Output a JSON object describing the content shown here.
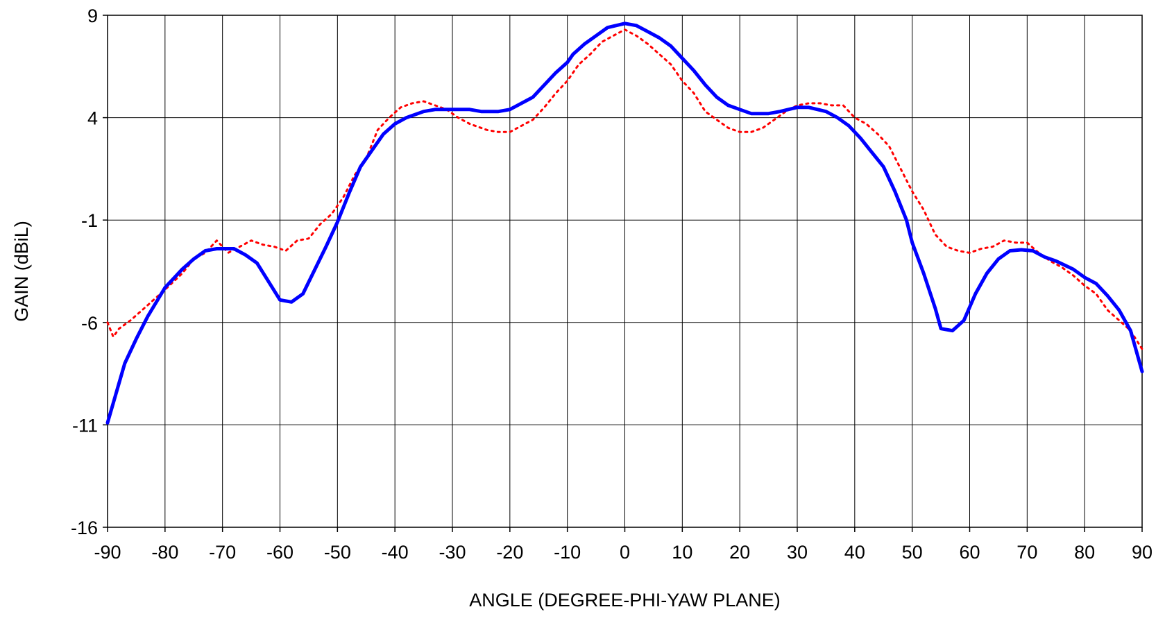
{
  "chart_data": {
    "type": "line",
    "title": "",
    "xlabel": "ANGLE (DEGREE-PHI-YAW PLANE)",
    "ylabel": "GAIN (dBiL)",
    "xlim": [
      -90,
      90
    ],
    "ylim": [
      -16,
      9
    ],
    "x_ticks": [
      -90,
      -80,
      -70,
      -60,
      -50,
      -40,
      -30,
      -20,
      -10,
      0,
      10,
      20,
      30,
      40,
      50,
      60,
      70,
      80,
      90
    ],
    "y_ticks": [
      9,
      4,
      -1,
      -6,
      -11,
      -16
    ],
    "grid": true,
    "legend": "none",
    "series": [
      {
        "color": "#0000ff",
        "style": "solid",
        "points": [
          [
            -90,
            -10.9
          ],
          [
            -87,
            -8.0
          ],
          [
            -85,
            -6.8
          ],
          [
            -83,
            -5.7
          ],
          [
            -80,
            -4.3
          ],
          [
            -77,
            -3.4
          ],
          [
            -75,
            -2.9
          ],
          [
            -73,
            -2.5
          ],
          [
            -71,
            -2.4
          ],
          [
            -68,
            -2.4
          ],
          [
            -66,
            -2.7
          ],
          [
            -64,
            -3.1
          ],
          [
            -60,
            -4.9
          ],
          [
            -58,
            -5.0
          ],
          [
            -56,
            -4.6
          ],
          [
            -52,
            -2.3
          ],
          [
            -50,
            -1.1
          ],
          [
            -48,
            0.3
          ],
          [
            -46,
            1.6
          ],
          [
            -44,
            2.4
          ],
          [
            -42,
            3.2
          ],
          [
            -40,
            3.7
          ],
          [
            -38,
            4.0
          ],
          [
            -35,
            4.3
          ],
          [
            -33,
            4.4
          ],
          [
            -30,
            4.4
          ],
          [
            -27,
            4.4
          ],
          [
            -25,
            4.3
          ],
          [
            -22,
            4.3
          ],
          [
            -20,
            4.4
          ],
          [
            -18,
            4.7
          ],
          [
            -16,
            5.0
          ],
          [
            -14,
            5.6
          ],
          [
            -12,
            6.2
          ],
          [
            -10,
            6.7
          ],
          [
            -9,
            7.1
          ],
          [
            -7,
            7.6
          ],
          [
            -5,
            8.0
          ],
          [
            -3,
            8.4
          ],
          [
            0,
            8.6
          ],
          [
            2,
            8.5
          ],
          [
            4,
            8.2
          ],
          [
            6,
            7.9
          ],
          [
            8,
            7.5
          ],
          [
            10,
            6.9
          ],
          [
            12,
            6.3
          ],
          [
            14,
            5.6
          ],
          [
            16,
            5.0
          ],
          [
            18,
            4.6
          ],
          [
            20,
            4.4
          ],
          [
            22,
            4.2
          ],
          [
            25,
            4.2
          ],
          [
            27,
            4.3
          ],
          [
            30,
            4.5
          ],
          [
            32,
            4.5
          ],
          [
            35,
            4.3
          ],
          [
            37,
            4.0
          ],
          [
            39,
            3.6
          ],
          [
            41,
            3.0
          ],
          [
            43,
            2.3
          ],
          [
            45,
            1.6
          ],
          [
            47,
            0.4
          ],
          [
            49,
            -1.0
          ],
          [
            50,
            -2.1
          ],
          [
            52,
            -3.6
          ],
          [
            54,
            -5.3
          ],
          [
            55,
            -6.3
          ],
          [
            57,
            -6.4
          ],
          [
            59,
            -5.9
          ],
          [
            61,
            -4.6
          ],
          [
            63,
            -3.6
          ],
          [
            65,
            -2.9
          ],
          [
            67,
            -2.5
          ],
          [
            69,
            -2.45
          ],
          [
            71,
            -2.5
          ],
          [
            73,
            -2.8
          ],
          [
            75,
            -3.0
          ],
          [
            78,
            -3.4
          ],
          [
            80,
            -3.8
          ],
          [
            82,
            -4.1
          ],
          [
            84,
            -4.7
          ],
          [
            86,
            -5.4
          ],
          [
            88,
            -6.4
          ],
          [
            90,
            -8.4
          ]
        ]
      },
      {
        "color": "#ff0000",
        "style": "dotted",
        "points": [
          [
            -90,
            -6.0
          ],
          [
            -89,
            -6.7
          ],
          [
            -88,
            -6.3
          ],
          [
            -86,
            -5.9
          ],
          [
            -84,
            -5.4
          ],
          [
            -82,
            -4.9
          ],
          [
            -80,
            -4.4
          ],
          [
            -77,
            -3.6
          ],
          [
            -75,
            -2.9
          ],
          [
            -73,
            -2.6
          ],
          [
            -71,
            -2.0
          ],
          [
            -69,
            -2.6
          ],
          [
            -67,
            -2.3
          ],
          [
            -65,
            -2.0
          ],
          [
            -63,
            -2.2
          ],
          [
            -61,
            -2.3
          ],
          [
            -59,
            -2.5
          ],
          [
            -57,
            -2.0
          ],
          [
            -55,
            -1.9
          ],
          [
            -53,
            -1.2
          ],
          [
            -51,
            -0.7
          ],
          [
            -49,
            0.1
          ],
          [
            -47,
            1.2
          ],
          [
            -45,
            2.0
          ],
          [
            -43,
            3.4
          ],
          [
            -41,
            4.0
          ],
          [
            -39,
            4.5
          ],
          [
            -37,
            4.7
          ],
          [
            -35,
            4.8
          ],
          [
            -33,
            4.6
          ],
          [
            -31,
            4.4
          ],
          [
            -29,
            4.0
          ],
          [
            -27,
            3.7
          ],
          [
            -24,
            3.4
          ],
          [
            -22,
            3.3
          ],
          [
            -20,
            3.3
          ],
          [
            -18,
            3.6
          ],
          [
            -16,
            3.9
          ],
          [
            -14,
            4.5
          ],
          [
            -12,
            5.2
          ],
          [
            -10,
            5.8
          ],
          [
            -8,
            6.6
          ],
          [
            -6,
            7.1
          ],
          [
            -4,
            7.7
          ],
          [
            -2,
            8.0
          ],
          [
            0,
            8.3
          ],
          [
            2,
            8.0
          ],
          [
            4,
            7.6
          ],
          [
            6,
            7.1
          ],
          [
            8,
            6.6
          ],
          [
            10,
            5.8
          ],
          [
            12,
            5.2
          ],
          [
            14,
            4.3
          ],
          [
            16,
            3.9
          ],
          [
            18,
            3.5
          ],
          [
            20,
            3.3
          ],
          [
            22,
            3.3
          ],
          [
            24,
            3.5
          ],
          [
            26,
            3.9
          ],
          [
            28,
            4.3
          ],
          [
            30,
            4.6
          ],
          [
            32,
            4.7
          ],
          [
            34,
            4.7
          ],
          [
            36,
            4.6
          ],
          [
            38,
            4.6
          ],
          [
            40,
            4.0
          ],
          [
            42,
            3.7
          ],
          [
            44,
            3.2
          ],
          [
            46,
            2.6
          ],
          [
            48,
            1.5
          ],
          [
            50,
            0.4
          ],
          [
            52,
            -0.5
          ],
          [
            54,
            -1.7
          ],
          [
            56,
            -2.3
          ],
          [
            58,
            -2.5
          ],
          [
            60,
            -2.6
          ],
          [
            62,
            -2.4
          ],
          [
            64,
            -2.3
          ],
          [
            66,
            -2.0
          ],
          [
            68,
            -2.1
          ],
          [
            70,
            -2.1
          ],
          [
            72,
            -2.6
          ],
          [
            74,
            -3.0
          ],
          [
            76,
            -3.3
          ],
          [
            78,
            -3.7
          ],
          [
            80,
            -4.2
          ],
          [
            82,
            -4.6
          ],
          [
            84,
            -5.4
          ],
          [
            86,
            -5.9
          ],
          [
            88,
            -6.4
          ],
          [
            90,
            -7.3
          ]
        ]
      }
    ]
  }
}
